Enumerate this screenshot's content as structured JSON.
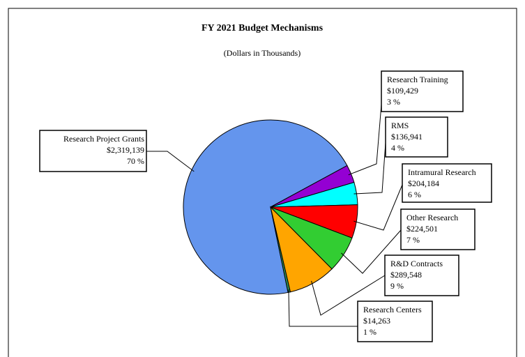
{
  "chart_data": {
    "type": "pie",
    "title": "FY 2021 Budget Mechanisms",
    "subtitle": "(Dollars in Thousands)",
    "categories": [
      "Research Project Grants",
      "Research Training",
      "RMS",
      "Intramural Research",
      "Other Research",
      "R&D Contracts",
      "Research Centers"
    ],
    "values": [
      2319139,
      109429,
      136941,
      204184,
      224501,
      289548,
      14263
    ],
    "value_labels": [
      "$2,319,139",
      "$109,429",
      "$136,941",
      "$204,184",
      "$224,501",
      "$289,548",
      "$14,263"
    ],
    "percents": [
      70,
      3,
      4,
      6,
      7,
      9,
      1
    ],
    "percent_labels": [
      "70 %",
      "3 %",
      "4 %",
      "6 %",
      "7 %",
      "9 %",
      "1 %"
    ],
    "colors": [
      "#6495ed",
      "#9400d3",
      "#00ffff",
      "#ff0000",
      "#32cd32",
      "#ffa500",
      "#2e8b57"
    ]
  }
}
